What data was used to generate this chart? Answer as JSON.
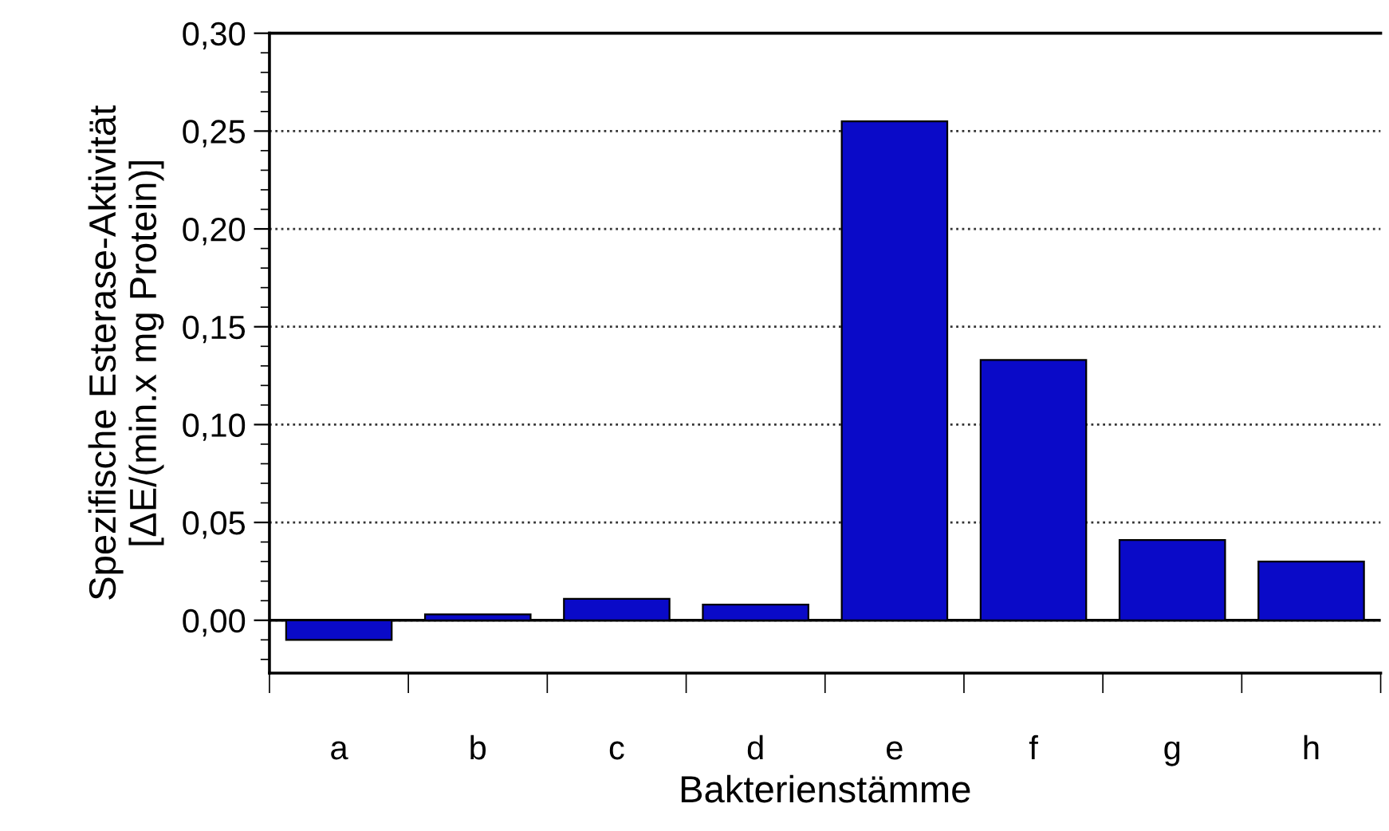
{
  "chart_data": {
    "type": "bar",
    "xlabel": "Bakterienstämme",
    "ylabel": "Spezifische Esterase-Aktivität\n[ΔE/(min.x mg Protein)]",
    "categories": [
      "a",
      "b",
      "c",
      "d",
      "e",
      "f",
      "g",
      "h"
    ],
    "values": [
      -0.01,
      0.003,
      0.011,
      0.008,
      0.255,
      0.133,
      0.041,
      0.03
    ],
    "color": "#0a0ac8",
    "ylim": [
      -0.027,
      0.3
    ],
    "yticks": [
      {
        "value": 0,
        "label": "0,00"
      },
      {
        "value": 0.05,
        "label": "0,05"
      },
      {
        "value": 0.1,
        "label": "0,10"
      },
      {
        "value": 0.15,
        "label": "0,15"
      },
      {
        "value": 0.2,
        "label": "0,20"
      },
      {
        "value": 0.25,
        "label": "0,25"
      },
      {
        "value": 0.3,
        "label": "0,30"
      }
    ],
    "grid": "y",
    "line_style": "dotted",
    "ref_lines": [
      {
        "axis": "y",
        "value": 0,
        "color": "#000000",
        "line_style": "solid"
      }
    ]
  }
}
